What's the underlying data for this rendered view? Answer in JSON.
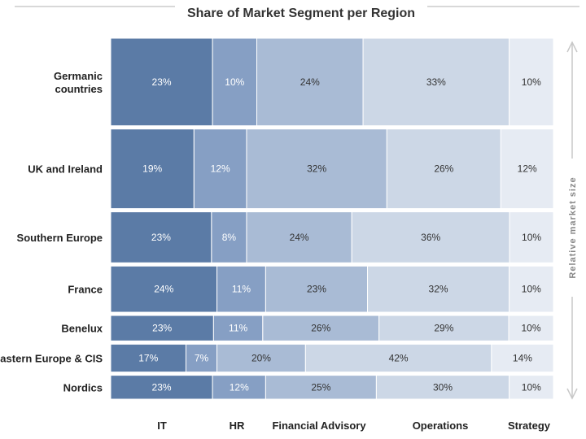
{
  "chart_data": {
    "type": "bar",
    "stacked": true,
    "normalized": true,
    "variable_width": true,
    "title": "Share of Market Segment per Region",
    "side_label": "Relative market size",
    "categories": [
      "Germanic countries",
      "UK and Ireland",
      "Southern Europe",
      "France",
      "Benelux",
      "Eastern Europe & CIS",
      "Nordics"
    ],
    "category_lines": [
      [
        "Germanic",
        "countries"
      ],
      [
        "UK and Ireland"
      ],
      [
        "Southern Europe"
      ],
      [
        "France"
      ],
      [
        "Benelux"
      ],
      [
        "Eastern Europe & CIS"
      ],
      [
        "Nordics"
      ]
    ],
    "relative_size": [
      110,
      100,
      64,
      58,
      32,
      35,
      30
    ],
    "series": [
      {
        "name": "IT",
        "values": [
          23,
          19,
          23,
          24,
          23,
          17,
          23
        ],
        "labels": [
          "23%",
          "19%",
          "23%",
          "24%",
          "23%",
          "17%",
          "23%"
        ]
      },
      {
        "name": "HR",
        "values": [
          10,
          12,
          8,
          11,
          11,
          7,
          12
        ],
        "labels": [
          "10%",
          "12%",
          "8%",
          "11%",
          "11%",
          "7%",
          "12%"
        ]
      },
      {
        "name": "Financial Advisory",
        "values": [
          24,
          32,
          24,
          23,
          26,
          20,
          25
        ],
        "labels": [
          "24%",
          "32%",
          "24%",
          "23%",
          "26%",
          "20%",
          "25%"
        ]
      },
      {
        "name": "Operations",
        "values": [
          33,
          26,
          36,
          32,
          29,
          42,
          30
        ],
        "labels": [
          "33%",
          "26%",
          "36%",
          "32%",
          "29%",
          "42%",
          "30%"
        ]
      },
      {
        "name": "Strategy",
        "values": [
          10,
          12,
          10,
          10,
          10,
          14,
          10
        ],
        "labels": [
          "10%",
          "12%",
          "10%",
          "10%",
          "10%",
          "14%",
          "10%"
        ]
      }
    ],
    "colors": [
      "#5b7ba6",
      "#869fc4",
      "#a9bbd5",
      "#ccd7e6",
      "#e6ebf3"
    ],
    "value_text_colors": [
      "#ffffff",
      "#ffffff",
      "#333333",
      "#333333",
      "#333333"
    ],
    "grid": false
  }
}
